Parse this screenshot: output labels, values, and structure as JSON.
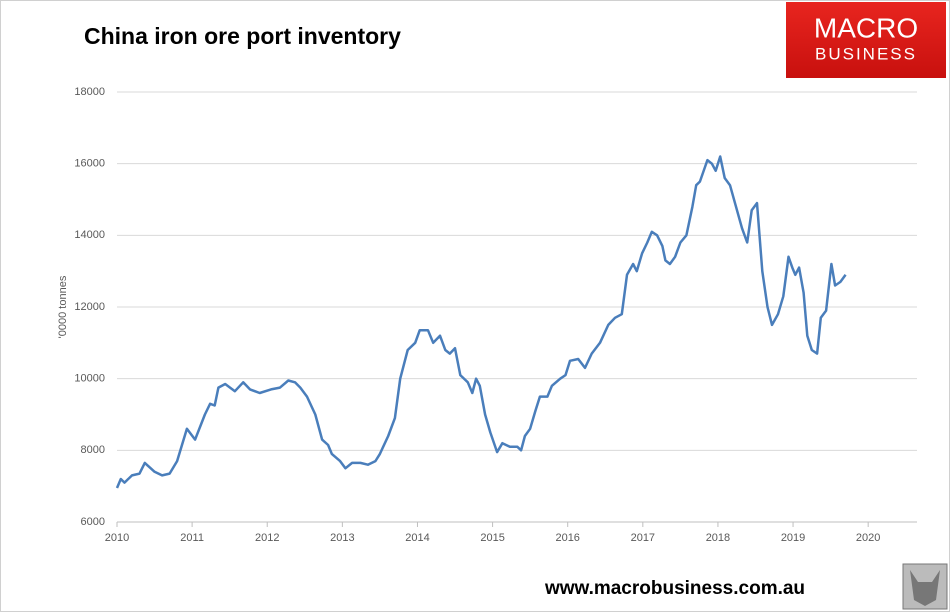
{
  "chart_data": {
    "type": "line",
    "title": "China iron ore port inventory",
    "y_label": "'0000 tonnes",
    "color": "#4a7ebb",
    "x": [
      2010.0,
      2010.05,
      2010.1,
      2010.2,
      2010.3,
      2010.37,
      2010.5,
      2010.6,
      2010.7,
      2010.8,
      2010.93,
      2011.04,
      2011.17,
      2011.24,
      2011.3,
      2011.35,
      2011.44,
      2011.57,
      2011.68,
      2011.77,
      2011.9,
      2012.05,
      2012.17,
      2012.28,
      2012.37,
      2012.44,
      2012.53,
      2012.64,
      2012.73,
      2012.81,
      2012.86,
      2012.97,
      2013.04,
      2013.13,
      2013.24,
      2013.34,
      2013.44,
      2013.5,
      2013.61,
      2013.7,
      2013.77,
      2013.87,
      2013.97,
      2014.03,
      2014.14,
      2014.21,
      2014.3,
      2014.37,
      2014.43,
      2014.5,
      2014.57,
      2014.67,
      2014.73,
      2014.78,
      2014.83,
      2014.9,
      2014.97,
      2015.06,
      2015.13,
      2015.23,
      2015.33,
      2015.38,
      2015.43,
      2015.5,
      2015.57,
      2015.63,
      2015.73,
      2015.79,
      2015.9,
      2015.97,
      2016.03,
      2016.14,
      2016.23,
      2016.32,
      2016.43,
      2016.54,
      2016.63,
      2016.72,
      2016.79,
      2016.87,
      2016.92,
      2016.99,
      2017.06,
      2017.12,
      2017.19,
      2017.26,
      2017.3,
      2017.36,
      2017.43,
      2017.5,
      2017.58,
      2017.66,
      2017.71,
      2017.76,
      2017.86,
      2017.92,
      2017.97,
      2018.03,
      2018.09,
      2018.16,
      2018.24,
      2018.32,
      2018.39,
      2018.45,
      2018.52,
      2018.59,
      2018.66,
      2018.72,
      2018.8,
      2018.87,
      2018.94,
      2018.99,
      2019.03,
      2019.08,
      2019.14,
      2019.19,
      2019.25,
      2019.32,
      2019.37,
      2019.44,
      2019.51,
      2019.56,
      2019.63,
      2019.7
    ],
    "values": [
      6950,
      7200,
      7100,
      7300,
      7350,
      7650,
      7400,
      7300,
      7350,
      7700,
      8600,
      8300,
      9000,
      9300,
      9250,
      9750,
      9850,
      9650,
      9900,
      9700,
      9600,
      9700,
      9750,
      9950,
      9900,
      9750,
      9500,
      9000,
      8300,
      8150,
      7900,
      7700,
      7500,
      7650,
      7650,
      7600,
      7700,
      7900,
      8400,
      8900,
      10000,
      10800,
      11000,
      11350,
      11350,
      11000,
      11200,
      10800,
      10700,
      10850,
      10100,
      9900,
      9600,
      10000,
      9800,
      9000,
      8500,
      7950,
      8200,
      8100,
      8100,
      8000,
      8400,
      8600,
      9100,
      9500,
      9500,
      9800,
      10000,
      10100,
      10500,
      10550,
      10300,
      10700,
      11000,
      11500,
      11700,
      11800,
      12900,
      13200,
      13000,
      13500,
      13800,
      14100,
      14000,
      13700,
      13300,
      13200,
      13400,
      13800,
      14000,
      14800,
      15400,
      15500,
      16100,
      16000,
      15800,
      16200,
      15600,
      15400,
      14800,
      14200,
      13800,
      14700,
      14900,
      13000,
      12000,
      11500,
      11800,
      12300,
      13400,
      13100,
      12900,
      13100,
      12400,
      11200,
      10800,
      10700,
      11700,
      11900,
      13200,
      12600,
      12700,
      12900
    ],
    "xlim": [
      2010,
      2020.65
    ],
    "xticks": [
      2010,
      2011,
      2012,
      2013,
      2014,
      2015,
      2016,
      2017,
      2018,
      2019,
      2020
    ],
    "ylim": [
      6000,
      18000
    ],
    "yticks": [
      6000,
      8000,
      10000,
      12000,
      14000,
      16000,
      18000
    ],
    "grid": true
  },
  "logo": {
    "line1": "MACRO",
    "line2": "BUSINESS"
  },
  "footer": "www.macrobusiness.com.au"
}
